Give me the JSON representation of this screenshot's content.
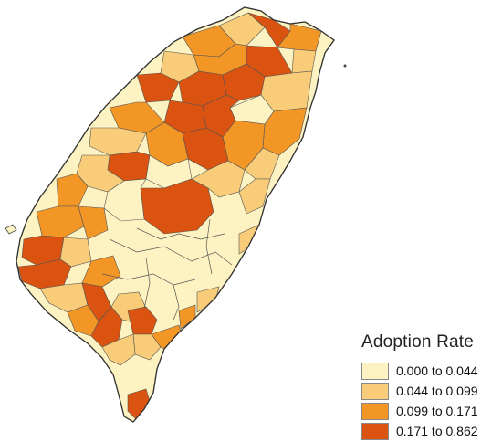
{
  "legend": {
    "title": "Adoption Rate",
    "classes": [
      {
        "label": "0.000 to 0.044",
        "color": "#fdf3c2"
      },
      {
        "label": "0.044 to 0.099",
        "color": "#f8cc78"
      },
      {
        "label": "0.099 to 0.171",
        "color": "#f29626"
      },
      {
        "label": "0.171 to 0.862",
        "color": "#db5310"
      }
    ]
  },
  "border_color": "#555555"
}
